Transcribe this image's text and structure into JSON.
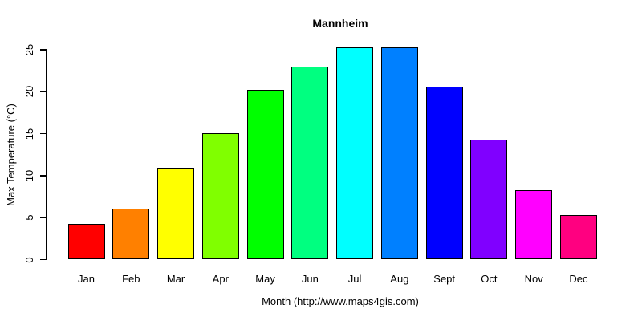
{
  "title": "Mannheim",
  "chart_data": {
    "type": "bar",
    "title": "Mannheim",
    "xlabel": "Month (http://www.maps4gis.com)",
    "ylabel": "Max Temperature (°C)",
    "categories": [
      "Jan",
      "Feb",
      "Mar",
      "Apr",
      "May",
      "Jun",
      "Jul",
      "Aug",
      "Sept",
      "Oct",
      "Nov",
      "Dec"
    ],
    "values": [
      4.3,
      6.1,
      10.9,
      15.1,
      20.2,
      23.0,
      25.3,
      25.3,
      20.6,
      14.3,
      8.3,
      5.3
    ],
    "bar_colors": [
      "#FF0000",
      "#FF8000",
      "#FFFF00",
      "#80FF00",
      "#00FF00",
      "#00FF80",
      "#00FFFF",
      "#0080FF",
      "#0000FF",
      "#8000FF",
      "#FF00FF",
      "#FF0080"
    ],
    "bar_border_color": "#000000",
    "axis_color": "#000000",
    "text_color": "#000000",
    "background_color": "#FFFFFF",
    "ylim": [
      0,
      25
    ],
    "yticks": [
      0,
      5,
      10,
      15,
      20,
      25
    ],
    "grid": false,
    "legend": "none"
  }
}
